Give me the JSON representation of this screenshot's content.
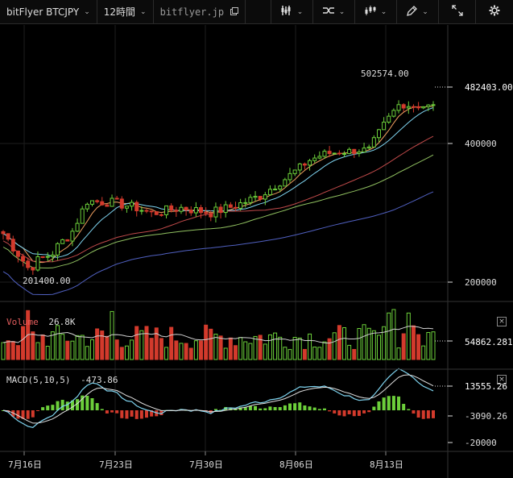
{
  "toolbar": {
    "symbol": "bitFlyer BTCJPY",
    "interval": "12時間",
    "url": "bitflyer.jp"
  },
  "price_axis": {
    "high_label": "502574.00",
    "low_label": "201400.00",
    "last_price": "482403.00",
    "ticks": [
      "400000",
      "200000"
    ]
  },
  "volume": {
    "label": "Volume",
    "value": "26.8K",
    "axis_value": "54862.281"
  },
  "macd": {
    "label": "MACD(5,10,5)",
    "value": "-473.86",
    "ticks": [
      "13555.26",
      "-3090.26",
      "-20000"
    ]
  },
  "time_axis": [
    "7月16日",
    "7月23日",
    "7月30日",
    "8月06日",
    "8月13日"
  ],
  "colors": {
    "up": "#6ccf3a",
    "down": "#d33a2c",
    "ma1": "#f0a060",
    "ma2": "#7fd4f0",
    "ma3": "#c04a4a",
    "ma4": "#90c060",
    "ma5": "#5060c0"
  }
}
